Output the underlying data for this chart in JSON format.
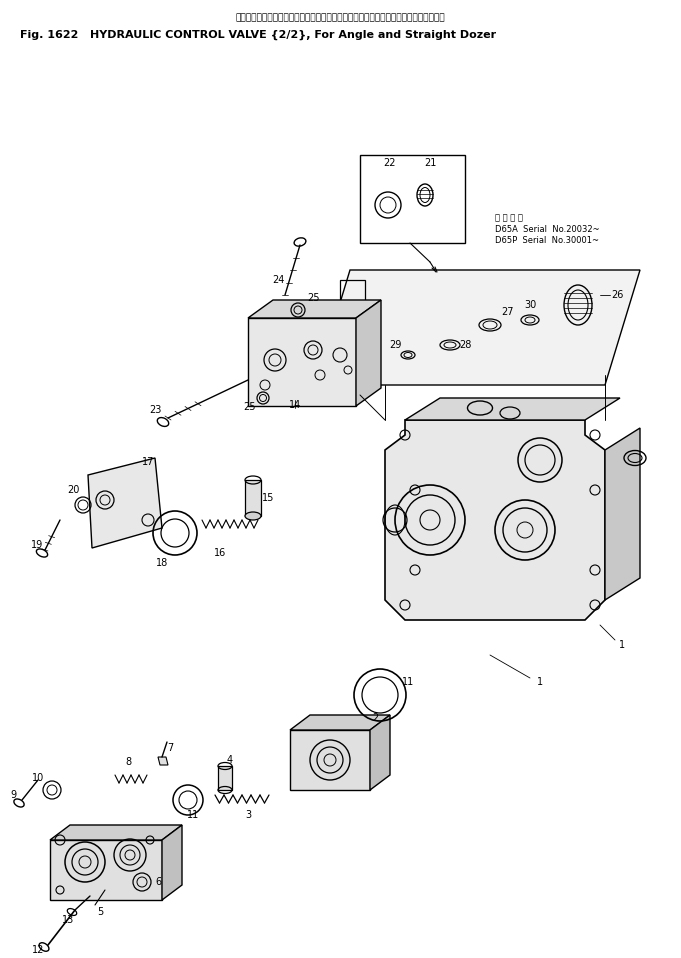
{
  "title_japanese": "ハイドロリック　コントロール　バルブ　　アングル　および　ストレート　ドーザ用",
  "title_english": "Fig. 1622   HYDRAULIC CONTROL VALVE {2/2}, For Angle and Straight Dozer",
  "bg_color": "#ffffff",
  "line_color": "#000000",
  "fig_width": 6.81,
  "fig_height": 9.58,
  "dpi": 100,
  "serial_note_japanese": "適 用 番 数",
  "serial_note_1": "D65A  Serial  No.20032~",
  "serial_note_2": "D65P  Serial  No.30001~"
}
